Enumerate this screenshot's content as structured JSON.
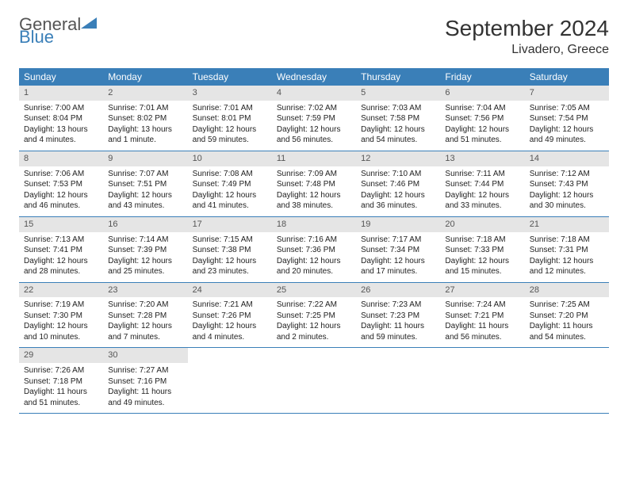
{
  "brand": {
    "general": "General",
    "blue": "Blue"
  },
  "title": "September 2024",
  "location": "Livadero, Greece",
  "weekdays": [
    "Sunday",
    "Monday",
    "Tuesday",
    "Wednesday",
    "Thursday",
    "Friday",
    "Saturday"
  ],
  "colors": {
    "header_bg": "#3a7fb8",
    "daynum_bg": "#e5e5e5",
    "border": "#3a7fb8"
  },
  "layout": {
    "cols": 7,
    "rows": 5
  },
  "days": [
    {
      "n": "1",
      "sunrise": "Sunrise: 7:00 AM",
      "sunset": "Sunset: 8:04 PM",
      "daylight": "Daylight: 13 hours and 4 minutes."
    },
    {
      "n": "2",
      "sunrise": "Sunrise: 7:01 AM",
      "sunset": "Sunset: 8:02 PM",
      "daylight": "Daylight: 13 hours and 1 minute."
    },
    {
      "n": "3",
      "sunrise": "Sunrise: 7:01 AM",
      "sunset": "Sunset: 8:01 PM",
      "daylight": "Daylight: 12 hours and 59 minutes."
    },
    {
      "n": "4",
      "sunrise": "Sunrise: 7:02 AM",
      "sunset": "Sunset: 7:59 PM",
      "daylight": "Daylight: 12 hours and 56 minutes."
    },
    {
      "n": "5",
      "sunrise": "Sunrise: 7:03 AM",
      "sunset": "Sunset: 7:58 PM",
      "daylight": "Daylight: 12 hours and 54 minutes."
    },
    {
      "n": "6",
      "sunrise": "Sunrise: 7:04 AM",
      "sunset": "Sunset: 7:56 PM",
      "daylight": "Daylight: 12 hours and 51 minutes."
    },
    {
      "n": "7",
      "sunrise": "Sunrise: 7:05 AM",
      "sunset": "Sunset: 7:54 PM",
      "daylight": "Daylight: 12 hours and 49 minutes."
    },
    {
      "n": "8",
      "sunrise": "Sunrise: 7:06 AM",
      "sunset": "Sunset: 7:53 PM",
      "daylight": "Daylight: 12 hours and 46 minutes."
    },
    {
      "n": "9",
      "sunrise": "Sunrise: 7:07 AM",
      "sunset": "Sunset: 7:51 PM",
      "daylight": "Daylight: 12 hours and 43 minutes."
    },
    {
      "n": "10",
      "sunrise": "Sunrise: 7:08 AM",
      "sunset": "Sunset: 7:49 PM",
      "daylight": "Daylight: 12 hours and 41 minutes."
    },
    {
      "n": "11",
      "sunrise": "Sunrise: 7:09 AM",
      "sunset": "Sunset: 7:48 PM",
      "daylight": "Daylight: 12 hours and 38 minutes."
    },
    {
      "n": "12",
      "sunrise": "Sunrise: 7:10 AM",
      "sunset": "Sunset: 7:46 PM",
      "daylight": "Daylight: 12 hours and 36 minutes."
    },
    {
      "n": "13",
      "sunrise": "Sunrise: 7:11 AM",
      "sunset": "Sunset: 7:44 PM",
      "daylight": "Daylight: 12 hours and 33 minutes."
    },
    {
      "n": "14",
      "sunrise": "Sunrise: 7:12 AM",
      "sunset": "Sunset: 7:43 PM",
      "daylight": "Daylight: 12 hours and 30 minutes."
    },
    {
      "n": "15",
      "sunrise": "Sunrise: 7:13 AM",
      "sunset": "Sunset: 7:41 PM",
      "daylight": "Daylight: 12 hours and 28 minutes."
    },
    {
      "n": "16",
      "sunrise": "Sunrise: 7:14 AM",
      "sunset": "Sunset: 7:39 PM",
      "daylight": "Daylight: 12 hours and 25 minutes."
    },
    {
      "n": "17",
      "sunrise": "Sunrise: 7:15 AM",
      "sunset": "Sunset: 7:38 PM",
      "daylight": "Daylight: 12 hours and 23 minutes."
    },
    {
      "n": "18",
      "sunrise": "Sunrise: 7:16 AM",
      "sunset": "Sunset: 7:36 PM",
      "daylight": "Daylight: 12 hours and 20 minutes."
    },
    {
      "n": "19",
      "sunrise": "Sunrise: 7:17 AM",
      "sunset": "Sunset: 7:34 PM",
      "daylight": "Daylight: 12 hours and 17 minutes."
    },
    {
      "n": "20",
      "sunrise": "Sunrise: 7:18 AM",
      "sunset": "Sunset: 7:33 PM",
      "daylight": "Daylight: 12 hours and 15 minutes."
    },
    {
      "n": "21",
      "sunrise": "Sunrise: 7:18 AM",
      "sunset": "Sunset: 7:31 PM",
      "daylight": "Daylight: 12 hours and 12 minutes."
    },
    {
      "n": "22",
      "sunrise": "Sunrise: 7:19 AM",
      "sunset": "Sunset: 7:30 PM",
      "daylight": "Daylight: 12 hours and 10 minutes."
    },
    {
      "n": "23",
      "sunrise": "Sunrise: 7:20 AM",
      "sunset": "Sunset: 7:28 PM",
      "daylight": "Daylight: 12 hours and 7 minutes."
    },
    {
      "n": "24",
      "sunrise": "Sunrise: 7:21 AM",
      "sunset": "Sunset: 7:26 PM",
      "daylight": "Daylight: 12 hours and 4 minutes."
    },
    {
      "n": "25",
      "sunrise": "Sunrise: 7:22 AM",
      "sunset": "Sunset: 7:25 PM",
      "daylight": "Daylight: 12 hours and 2 minutes."
    },
    {
      "n": "26",
      "sunrise": "Sunrise: 7:23 AM",
      "sunset": "Sunset: 7:23 PM",
      "daylight": "Daylight: 11 hours and 59 minutes."
    },
    {
      "n": "27",
      "sunrise": "Sunrise: 7:24 AM",
      "sunset": "Sunset: 7:21 PM",
      "daylight": "Daylight: 11 hours and 56 minutes."
    },
    {
      "n": "28",
      "sunrise": "Sunrise: 7:25 AM",
      "sunset": "Sunset: 7:20 PM",
      "daylight": "Daylight: 11 hours and 54 minutes."
    },
    {
      "n": "29",
      "sunrise": "Sunrise: 7:26 AM",
      "sunset": "Sunset: 7:18 PM",
      "daylight": "Daylight: 11 hours and 51 minutes."
    },
    {
      "n": "30",
      "sunrise": "Sunrise: 7:27 AM",
      "sunset": "Sunset: 7:16 PM",
      "daylight": "Daylight: 11 hours and 49 minutes."
    }
  ]
}
